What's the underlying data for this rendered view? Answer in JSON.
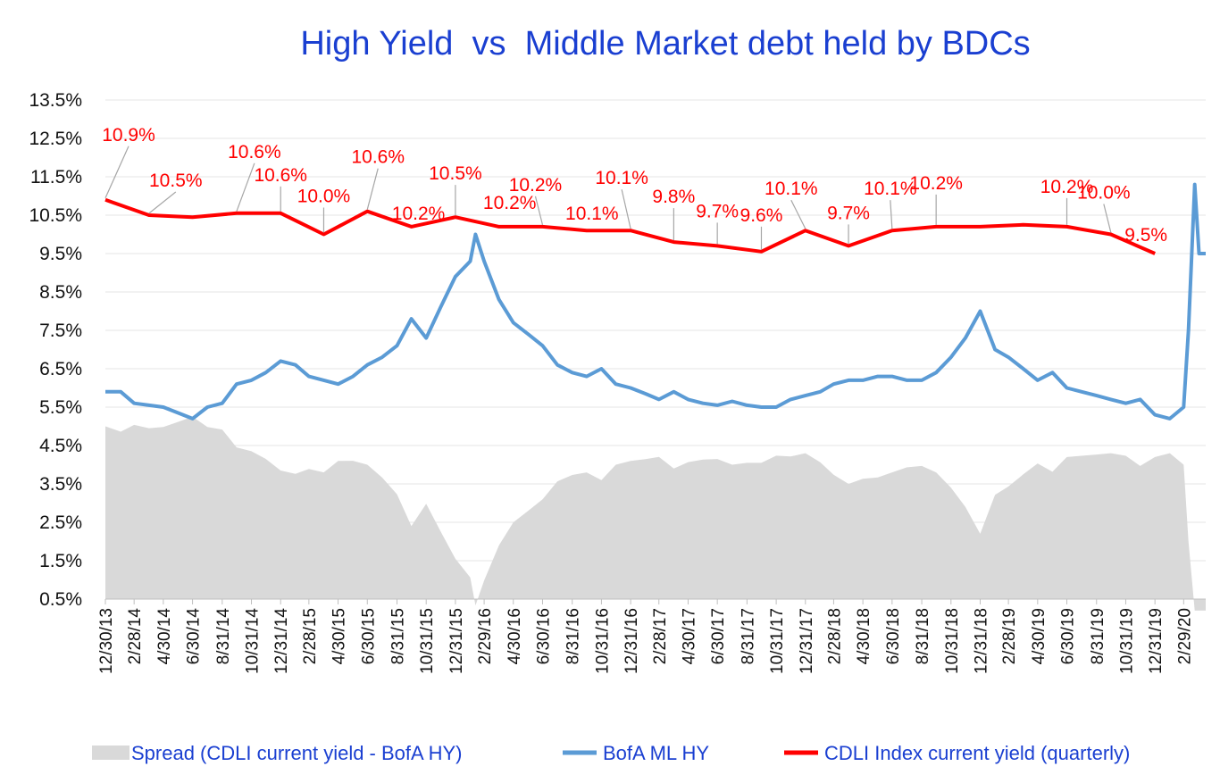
{
  "chart_data": {
    "type": "line",
    "title": "High Yield  vs  Middle Market debt held by BDCs",
    "ylabel": "",
    "xlabel": "",
    "ylim": [
      0.5,
      13.5
    ],
    "y_ticks": [
      "13.5%",
      "12.5%",
      "11.5%",
      "10.5%",
      "9.5%",
      "8.5%",
      "7.5%",
      "6.5%",
      "5.5%",
      "4.5%",
      "3.5%",
      "2.5%",
      "1.5%",
      "0.5%"
    ],
    "x_ticks": [
      "12/30/13",
      "2/28/14",
      "4/30/14",
      "6/30/14",
      "8/31/14",
      "10/31/14",
      "12/31/14",
      "2/28/15",
      "4/30/15",
      "6/30/15",
      "8/31/15",
      "10/31/15",
      "12/31/15",
      "2/29/16",
      "4/30/16",
      "6/30/16",
      "8/31/16",
      "10/31/16",
      "12/31/16",
      "2/28/17",
      "4/30/17",
      "6/30/17",
      "8/31/17",
      "10/31/17",
      "12/31/17",
      "2/28/18",
      "4/30/18",
      "6/30/18",
      "8/31/18",
      "10/31/18",
      "12/31/18",
      "2/28/19",
      "4/30/19",
      "6/30/19",
      "8/31/19",
      "10/31/19",
      "12/31/19",
      "2/29/20"
    ],
    "grid": true,
    "legend_position": "bottom",
    "colors": {
      "cdli": "#ff0000",
      "hy": "#5b9bd5",
      "spread": "#d9d9d9"
    },
    "series": [
      {
        "name": "CDLI Index current yield (quarterly)",
        "type": "line",
        "x": [
          "12/30/13",
          "3/31/14",
          "6/30/14",
          "9/30/14",
          "12/31/14",
          "3/31/15",
          "6/30/15",
          "9/30/15",
          "12/31/15",
          "3/31/16",
          "6/30/16",
          "9/30/16",
          "12/31/16",
          "3/31/17",
          "6/30/17",
          "9/30/17",
          "12/31/17",
          "3/31/18",
          "6/30/18",
          "9/30/18",
          "12/31/18",
          "3/31/19",
          "6/30/19",
          "9/30/19",
          "12/31/19"
        ],
        "values": [
          10.9,
          10.5,
          10.45,
          10.55,
          10.55,
          10.0,
          10.6,
          10.2,
          10.45,
          10.2,
          10.2,
          10.1,
          10.1,
          9.8,
          9.7,
          9.55,
          10.1,
          9.7,
          10.1,
          10.2,
          10.2,
          10.25,
          10.2,
          10.0,
          9.5
        ],
        "labels": [
          "10.9%",
          "10.5%",
          "",
          "10.6%",
          "10.6%",
          "10.0%",
          "10.6%",
          "10.2%",
          "10.5%",
          "10.2%",
          "10.2%",
          "10.1%",
          "10.1%",
          "9.8%",
          "9.7%",
          "9.6%",
          "10.1%",
          "9.7%",
          "10.1%",
          "10.2%",
          "",
          "",
          "10.2%",
          "10.0%",
          "9.5%"
        ]
      },
      {
        "name": "BofA ML HY",
        "type": "line",
        "x": [
          "12/30/13",
          "1/31/14",
          "2/28/14",
          "3/31/14",
          "4/30/14",
          "5/31/14",
          "6/30/14",
          "7/31/14",
          "8/31/14",
          "9/30/14",
          "10/31/14",
          "11/30/14",
          "12/31/14",
          "1/31/15",
          "2/28/15",
          "3/31/15",
          "4/30/15",
          "5/31/15",
          "6/30/15",
          "7/31/15",
          "8/31/15",
          "9/30/15",
          "10/31/15",
          "11/30/15",
          "12/31/15",
          "1/31/16",
          "2/11/16",
          "2/29/16",
          "3/31/16",
          "4/30/16",
          "5/31/16",
          "6/30/16",
          "7/31/16",
          "8/31/16",
          "9/30/16",
          "10/31/16",
          "11/30/16",
          "12/31/16",
          "1/31/17",
          "2/28/17",
          "3/31/17",
          "4/30/17",
          "5/31/17",
          "6/30/17",
          "7/31/17",
          "8/31/17",
          "9/30/17",
          "10/31/17",
          "11/30/17",
          "12/31/17",
          "1/31/18",
          "2/28/18",
          "3/31/18",
          "4/30/18",
          "5/31/18",
          "6/30/18",
          "7/31/18",
          "8/31/18",
          "9/30/18",
          "10/31/18",
          "11/30/18",
          "12/31/18",
          "1/31/19",
          "2/28/19",
          "3/31/19",
          "4/30/19",
          "5/31/19",
          "6/30/19",
          "7/31/19",
          "8/31/19",
          "9/30/19",
          "10/31/19",
          "11/30/19",
          "12/31/19",
          "1/31/20",
          "2/29/20",
          "3/10/20",
          "3/23/20",
          "4/1/20",
          "4/15/20"
        ],
        "values": [
          5.9,
          5.9,
          5.6,
          5.55,
          5.5,
          5.35,
          5.2,
          5.5,
          5.6,
          6.1,
          6.2,
          6.4,
          6.7,
          6.6,
          6.3,
          6.2,
          6.1,
          6.3,
          6.6,
          6.8,
          7.1,
          7.8,
          7.3,
          8.1,
          8.9,
          9.3,
          10.0,
          9.3,
          8.3,
          7.7,
          7.4,
          7.1,
          6.6,
          6.4,
          6.3,
          6.5,
          6.1,
          6.0,
          5.85,
          5.7,
          5.9,
          5.7,
          5.6,
          5.55,
          5.65,
          5.55,
          5.5,
          5.5,
          5.7,
          5.8,
          5.9,
          6.1,
          6.2,
          6.2,
          6.3,
          6.3,
          6.2,
          6.2,
          6.4,
          6.8,
          7.3,
          8.0,
          7.0,
          6.8,
          6.5,
          6.2,
          6.4,
          6.0,
          5.9,
          5.8,
          5.7,
          5.6,
          5.7,
          5.3,
          5.2,
          5.5,
          7.5,
          11.3,
          9.5,
          9.5
        ]
      },
      {
        "name": "Spread (CDLI current yield - BofA HY)",
        "type": "area",
        "note_values": "difference of the two series above"
      }
    ]
  },
  "legend": {
    "spread": "Spread (CDLI current yield - BofA HY)",
    "hy": "BofA ML HY",
    "cdli": "CDLI Index current yield (quarterly)"
  }
}
